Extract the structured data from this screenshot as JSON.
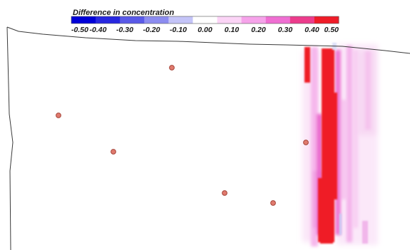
{
  "legend": {
    "title": "Difference in concentration",
    "ticks": [
      "-0.50",
      "-0.40",
      "-0.30",
      "-0.20",
      "-0.10",
      "0.00",
      "0.10",
      "0.20",
      "0.30",
      "0.40",
      "0.50"
    ],
    "values": [
      -0.5,
      -0.4,
      -0.3,
      -0.2,
      -0.1,
      0.0,
      0.1,
      0.2,
      0.3,
      0.4,
      0.5
    ],
    "colors": [
      "#0000d8",
      "#2828e0",
      "#5a5ae8",
      "#8c8cf0",
      "#c4c4f8",
      "#ffffff",
      "#fbd4f6",
      "#f6a3ea",
      "#ef6fd2",
      "#ec3c8c",
      "#ef1c28"
    ]
  },
  "colors": {
    "plume_high": "#ef1c28",
    "plume_mid": "#f06ad0",
    "plume_low": "#f9d3f4",
    "well_fill": "#e07a6e",
    "well_stroke": "#a5453a",
    "outline": "#3a3a3a"
  },
  "wells_count": 6
}
